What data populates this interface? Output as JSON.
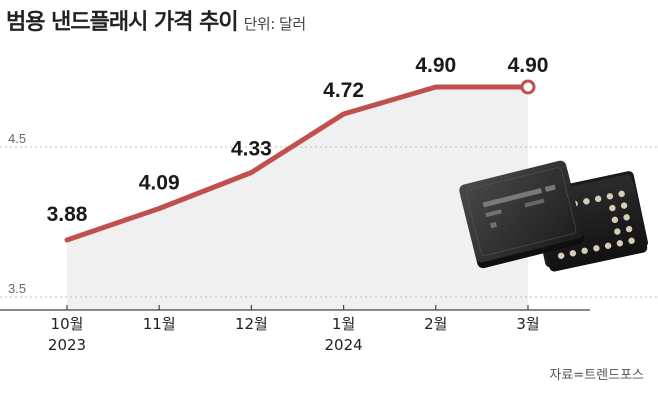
{
  "chart_data": {
    "type": "line",
    "title": "범용 낸드플래시 가격 추이",
    "unit_label": "단위: 달러",
    "categories": [
      {
        "month": "10월",
        "year": "2023"
      },
      {
        "month": "11월",
        "year": ""
      },
      {
        "month": "12월",
        "year": ""
      },
      {
        "month": "1월",
        "year": "2024"
      },
      {
        "month": "2월",
        "year": ""
      },
      {
        "month": "3월",
        "year": ""
      }
    ],
    "values": [
      3.88,
      4.09,
      4.33,
      4.72,
      4.9,
      4.9
    ],
    "value_labels": [
      "3.88",
      "4.09",
      "4.33",
      "4.72",
      "4.90",
      "4.90"
    ],
    "yticks": [
      {
        "value": 4.5,
        "label": "4.5"
      },
      {
        "value": 3.5,
        "label": "3.5"
      }
    ],
    "ylim": [
      3.5,
      5.0
    ],
    "grid": "dotted",
    "line_color": "#c0504d",
    "area_color": "#f0f0f0",
    "source": "자료=트렌드포스"
  },
  "illustration": {
    "icon": "nand-flash-chip-photo"
  }
}
